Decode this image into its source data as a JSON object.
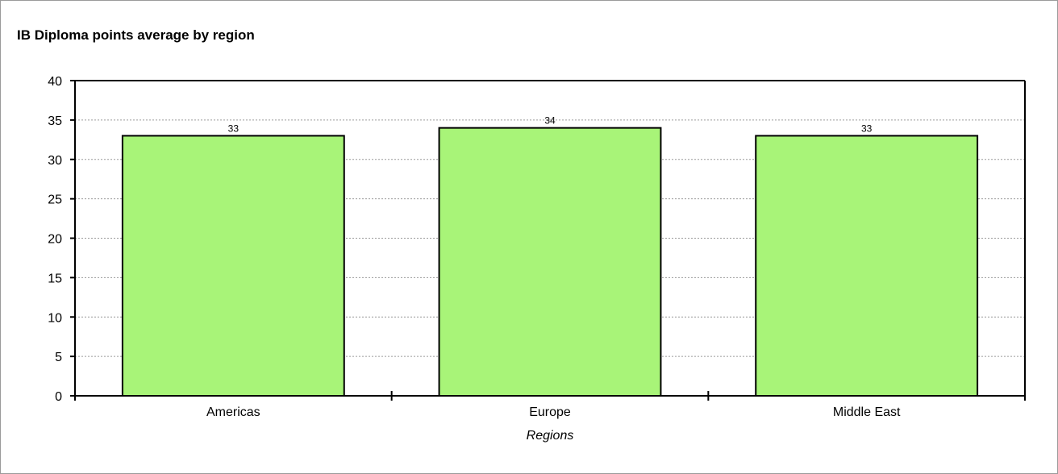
{
  "chart_data": {
    "type": "bar",
    "title": "IB Diploma points average by region",
    "xlabel": "Regions",
    "ylabel": "",
    "categories": [
      "Americas",
      "Europe",
      "Middle East"
    ],
    "values": [
      33,
      34,
      33
    ],
    "ylim": [
      0,
      40
    ],
    "yticks": [
      0,
      5,
      10,
      15,
      20,
      25,
      30,
      35,
      40
    ],
    "grid": true,
    "legend": "none",
    "bar_color": "#a8f478",
    "data_labels": true
  }
}
